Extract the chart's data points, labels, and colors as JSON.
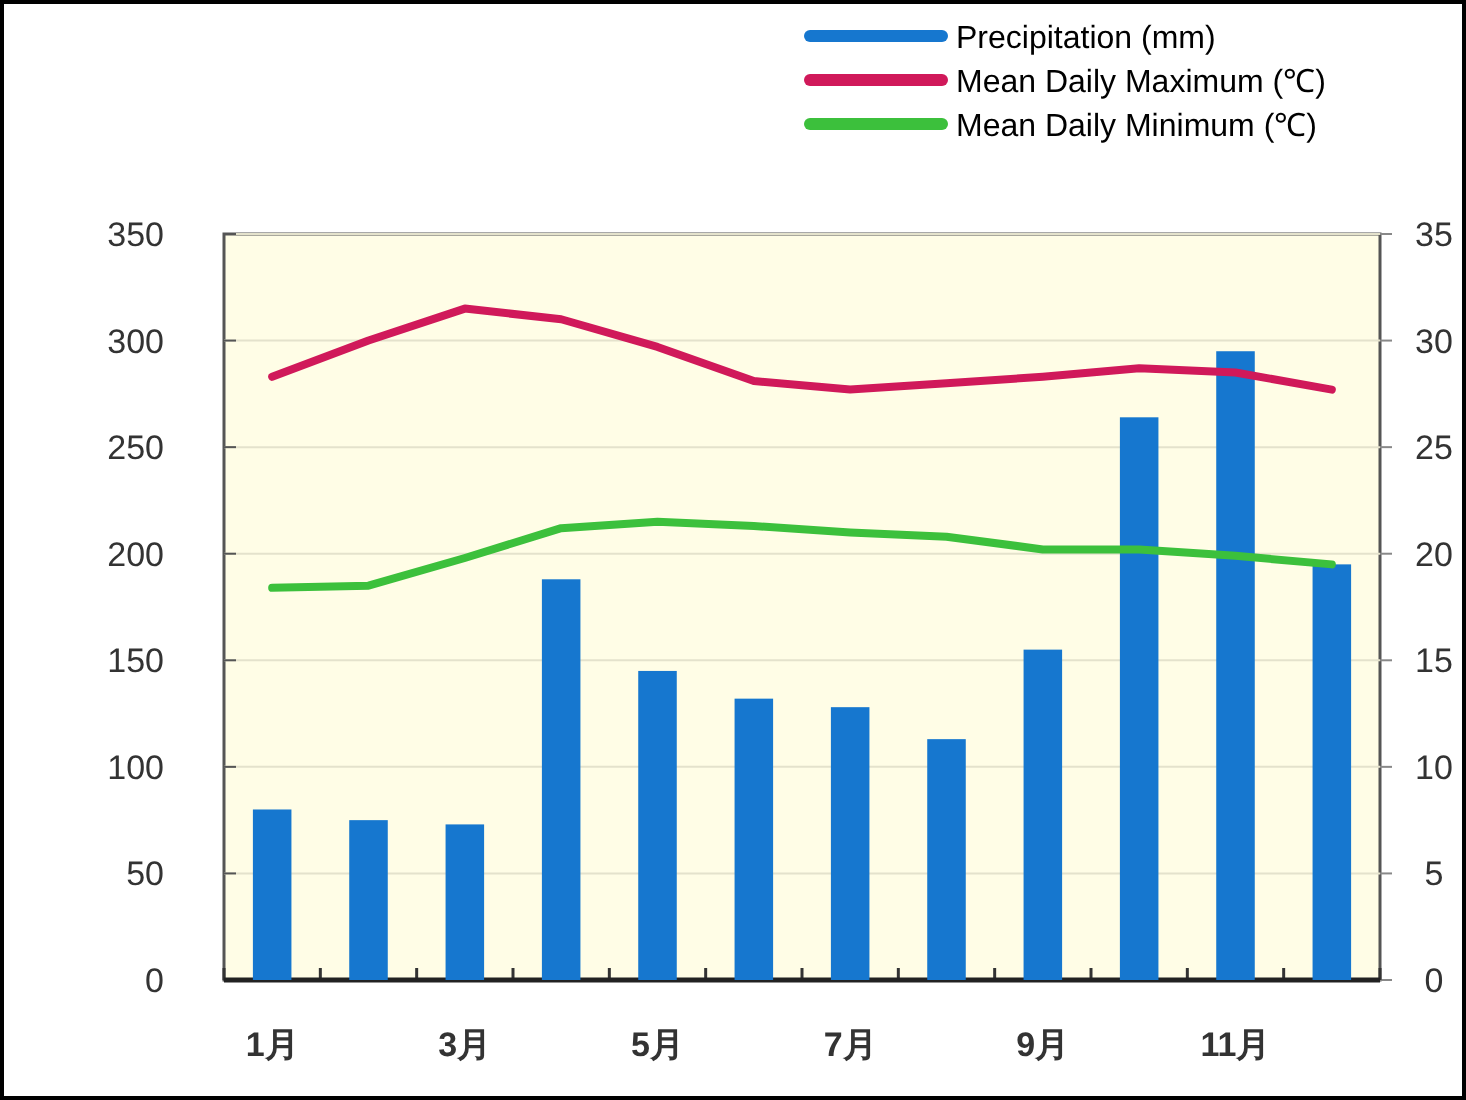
{
  "chart_data": {
    "type": "bar",
    "categories": [
      "1月",
      null,
      "3月",
      null,
      "5月",
      null,
      "7月",
      null,
      "9月",
      null,
      "11月",
      null
    ],
    "series": [
      {
        "name": "Precipitation (mm)",
        "color": "#1677cf",
        "values": [
          80,
          75,
          73,
          188,
          145,
          132,
          128,
          113,
          155,
          264,
          295,
          195
        ]
      },
      {
        "name": "Mean Daily Maximum (℃)",
        "type": "line",
        "axis": "y2",
        "color": "#d0195a",
        "values": [
          28.3,
          30.0,
          31.5,
          31.0,
          29.7,
          28.1,
          27.7,
          28.0,
          28.3,
          28.7,
          28.5,
          27.7
        ]
      },
      {
        "name": "Mean Daily Minimum (℃)",
        "type": "line",
        "axis": "y2",
        "color": "#3cc03c",
        "values": [
          18.4,
          18.5,
          19.8,
          21.2,
          21.5,
          21.3,
          21.0,
          20.8,
          20.2,
          20.2,
          19.9,
          19.5
        ]
      }
    ],
    "ylim": [
      0,
      350
    ],
    "yticks": [
      0,
      50,
      100,
      150,
      200,
      250,
      300,
      350
    ],
    "y2lim": [
      0,
      35
    ],
    "y2ticks": [
      0,
      5,
      10,
      15,
      20,
      25,
      30,
      35
    ],
    "grid": "y",
    "legend": "top right"
  }
}
